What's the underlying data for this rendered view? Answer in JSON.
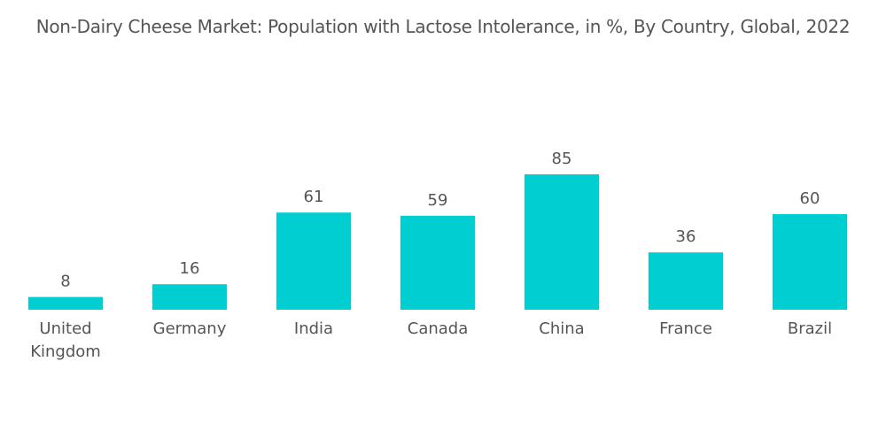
{
  "chart_data": {
    "type": "bar",
    "title": "Non-Dairy Cheese Market: Population with Lactose Intolerance, in %, By Country, Global, 2022",
    "categories": [
      "United Kingdom",
      "Germany",
      "India",
      "Canada",
      "China",
      "France",
      "Brazil"
    ],
    "category_label_lines": [
      [
        "United",
        "Kingdom"
      ],
      [
        "Germany"
      ],
      [
        "India"
      ],
      [
        "Canada"
      ],
      [
        "China"
      ],
      [
        "France"
      ],
      [
        "Brazil"
      ]
    ],
    "values": [
      8,
      16,
      61,
      59,
      85,
      36,
      60
    ],
    "data_labels": [
      "8",
      "16",
      "61",
      "59",
      "85",
      "36",
      "60"
    ],
    "xlabel": "",
    "ylabel": "",
    "ylim": [
      0,
      100
    ],
    "grid": false,
    "legend": "none",
    "colors": {
      "bar": "#00ced1",
      "text": "#555555"
    }
  }
}
